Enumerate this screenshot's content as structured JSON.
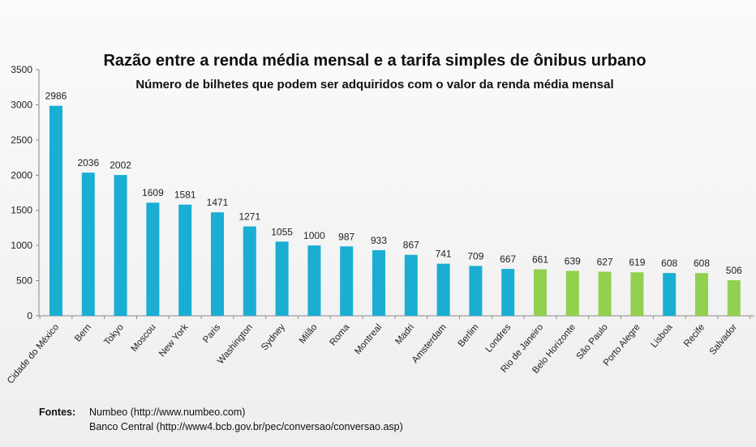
{
  "chart_data": {
    "type": "bar",
    "title": "Razão entre a renda média mensal e a tarifa simples de ônibus urbano",
    "subtitle": "Número de bilhetes que podem ser adquiridos com o valor da renda média mensal",
    "categories": [
      "Cidade do México",
      "Bern",
      "Tokyo",
      "Moscou",
      "New York",
      "Paris",
      "Washington",
      "Sydney",
      "Milão",
      "Roma",
      "Montreal",
      "Madri",
      "Amsterdam",
      "Berlim",
      "Londres",
      "Rio de Janeiro",
      "Belo Horizonte",
      "São Paulo",
      "Porto Alegre",
      "Lisboa",
      "Recife",
      "Salvador"
    ],
    "values": [
      2986,
      2036,
      2002,
      1609,
      1581,
      1471,
      1271,
      1055,
      1000,
      987,
      933,
      867,
      741,
      709,
      667,
      661,
      639,
      627,
      619,
      608,
      608,
      506
    ],
    "brazil": [
      false,
      false,
      false,
      false,
      false,
      false,
      false,
      false,
      false,
      false,
      false,
      false,
      false,
      false,
      false,
      true,
      true,
      true,
      true,
      false,
      true,
      true
    ],
    "colors": {
      "foreign": "#1aaed3",
      "brazil": "#92d050"
    },
    "ylim": [
      0,
      3500
    ],
    "yticks": [
      0,
      500,
      1000,
      1500,
      2000,
      2500,
      3000,
      3500
    ],
    "grid": false,
    "legend": "none"
  },
  "sources": {
    "label": "Fontes:",
    "line1": "Numbeo (http://www.numbeo.com)",
    "line2": "Banco Central (http://www4.bcb.gov.br/pec/conversao/conversao.asp)"
  }
}
